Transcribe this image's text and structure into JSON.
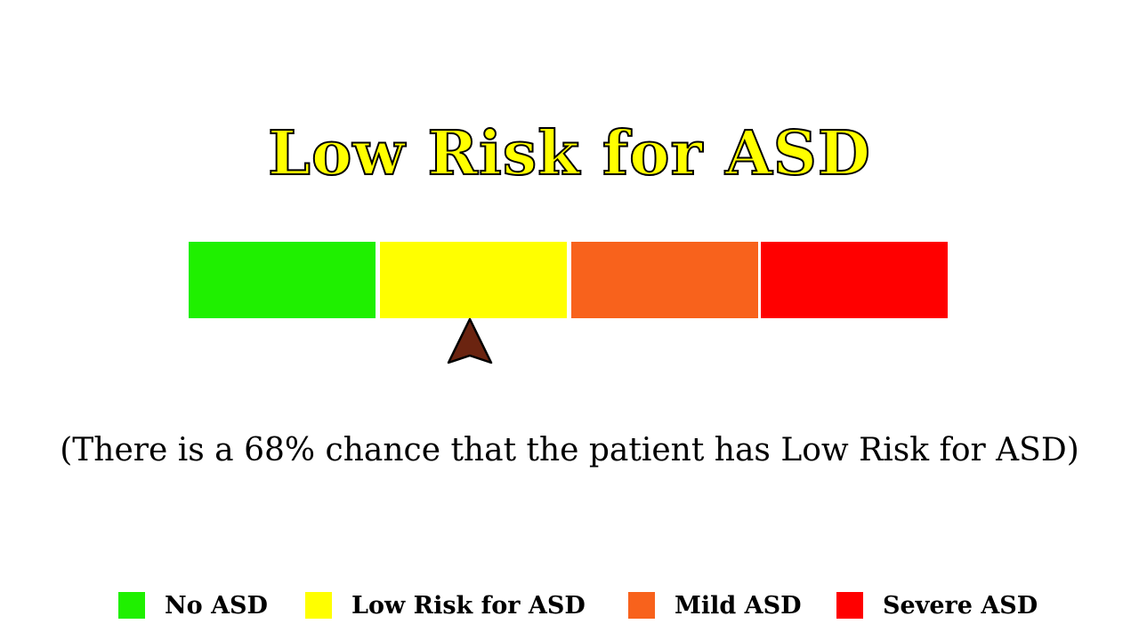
{
  "title": "Low Risk for ASD",
  "caption": "(There is a 68% chance that the patient has Low Risk for ASD)",
  "pointer": {
    "icon": "arrowhead-pointer-icon",
    "color": "#6b2410",
    "position_fraction": 0.371
  },
  "scale": {
    "segments": [
      {
        "name": "No ASD",
        "color": "#1ff000"
      },
      {
        "name": "Low Risk for ASD",
        "color": "#ffff00"
      },
      {
        "name": "Mild ASD",
        "color": "#f8621c"
      },
      {
        "name": "Severe ASD",
        "color": "#ff0000"
      }
    ]
  },
  "legend": {
    "items": [
      {
        "label": "No ASD",
        "color": "#1ff000"
      },
      {
        "label": "Low Risk for ASD",
        "color": "#ffff00"
      },
      {
        "label": "Mild ASD",
        "color": "#f8621c"
      },
      {
        "label": "Severe ASD",
        "color": "#ff0000"
      }
    ]
  },
  "colors": {
    "title_fill": "#ffff00",
    "title_outline": "#000000",
    "text": "#000000",
    "background": "#ffffff"
  }
}
